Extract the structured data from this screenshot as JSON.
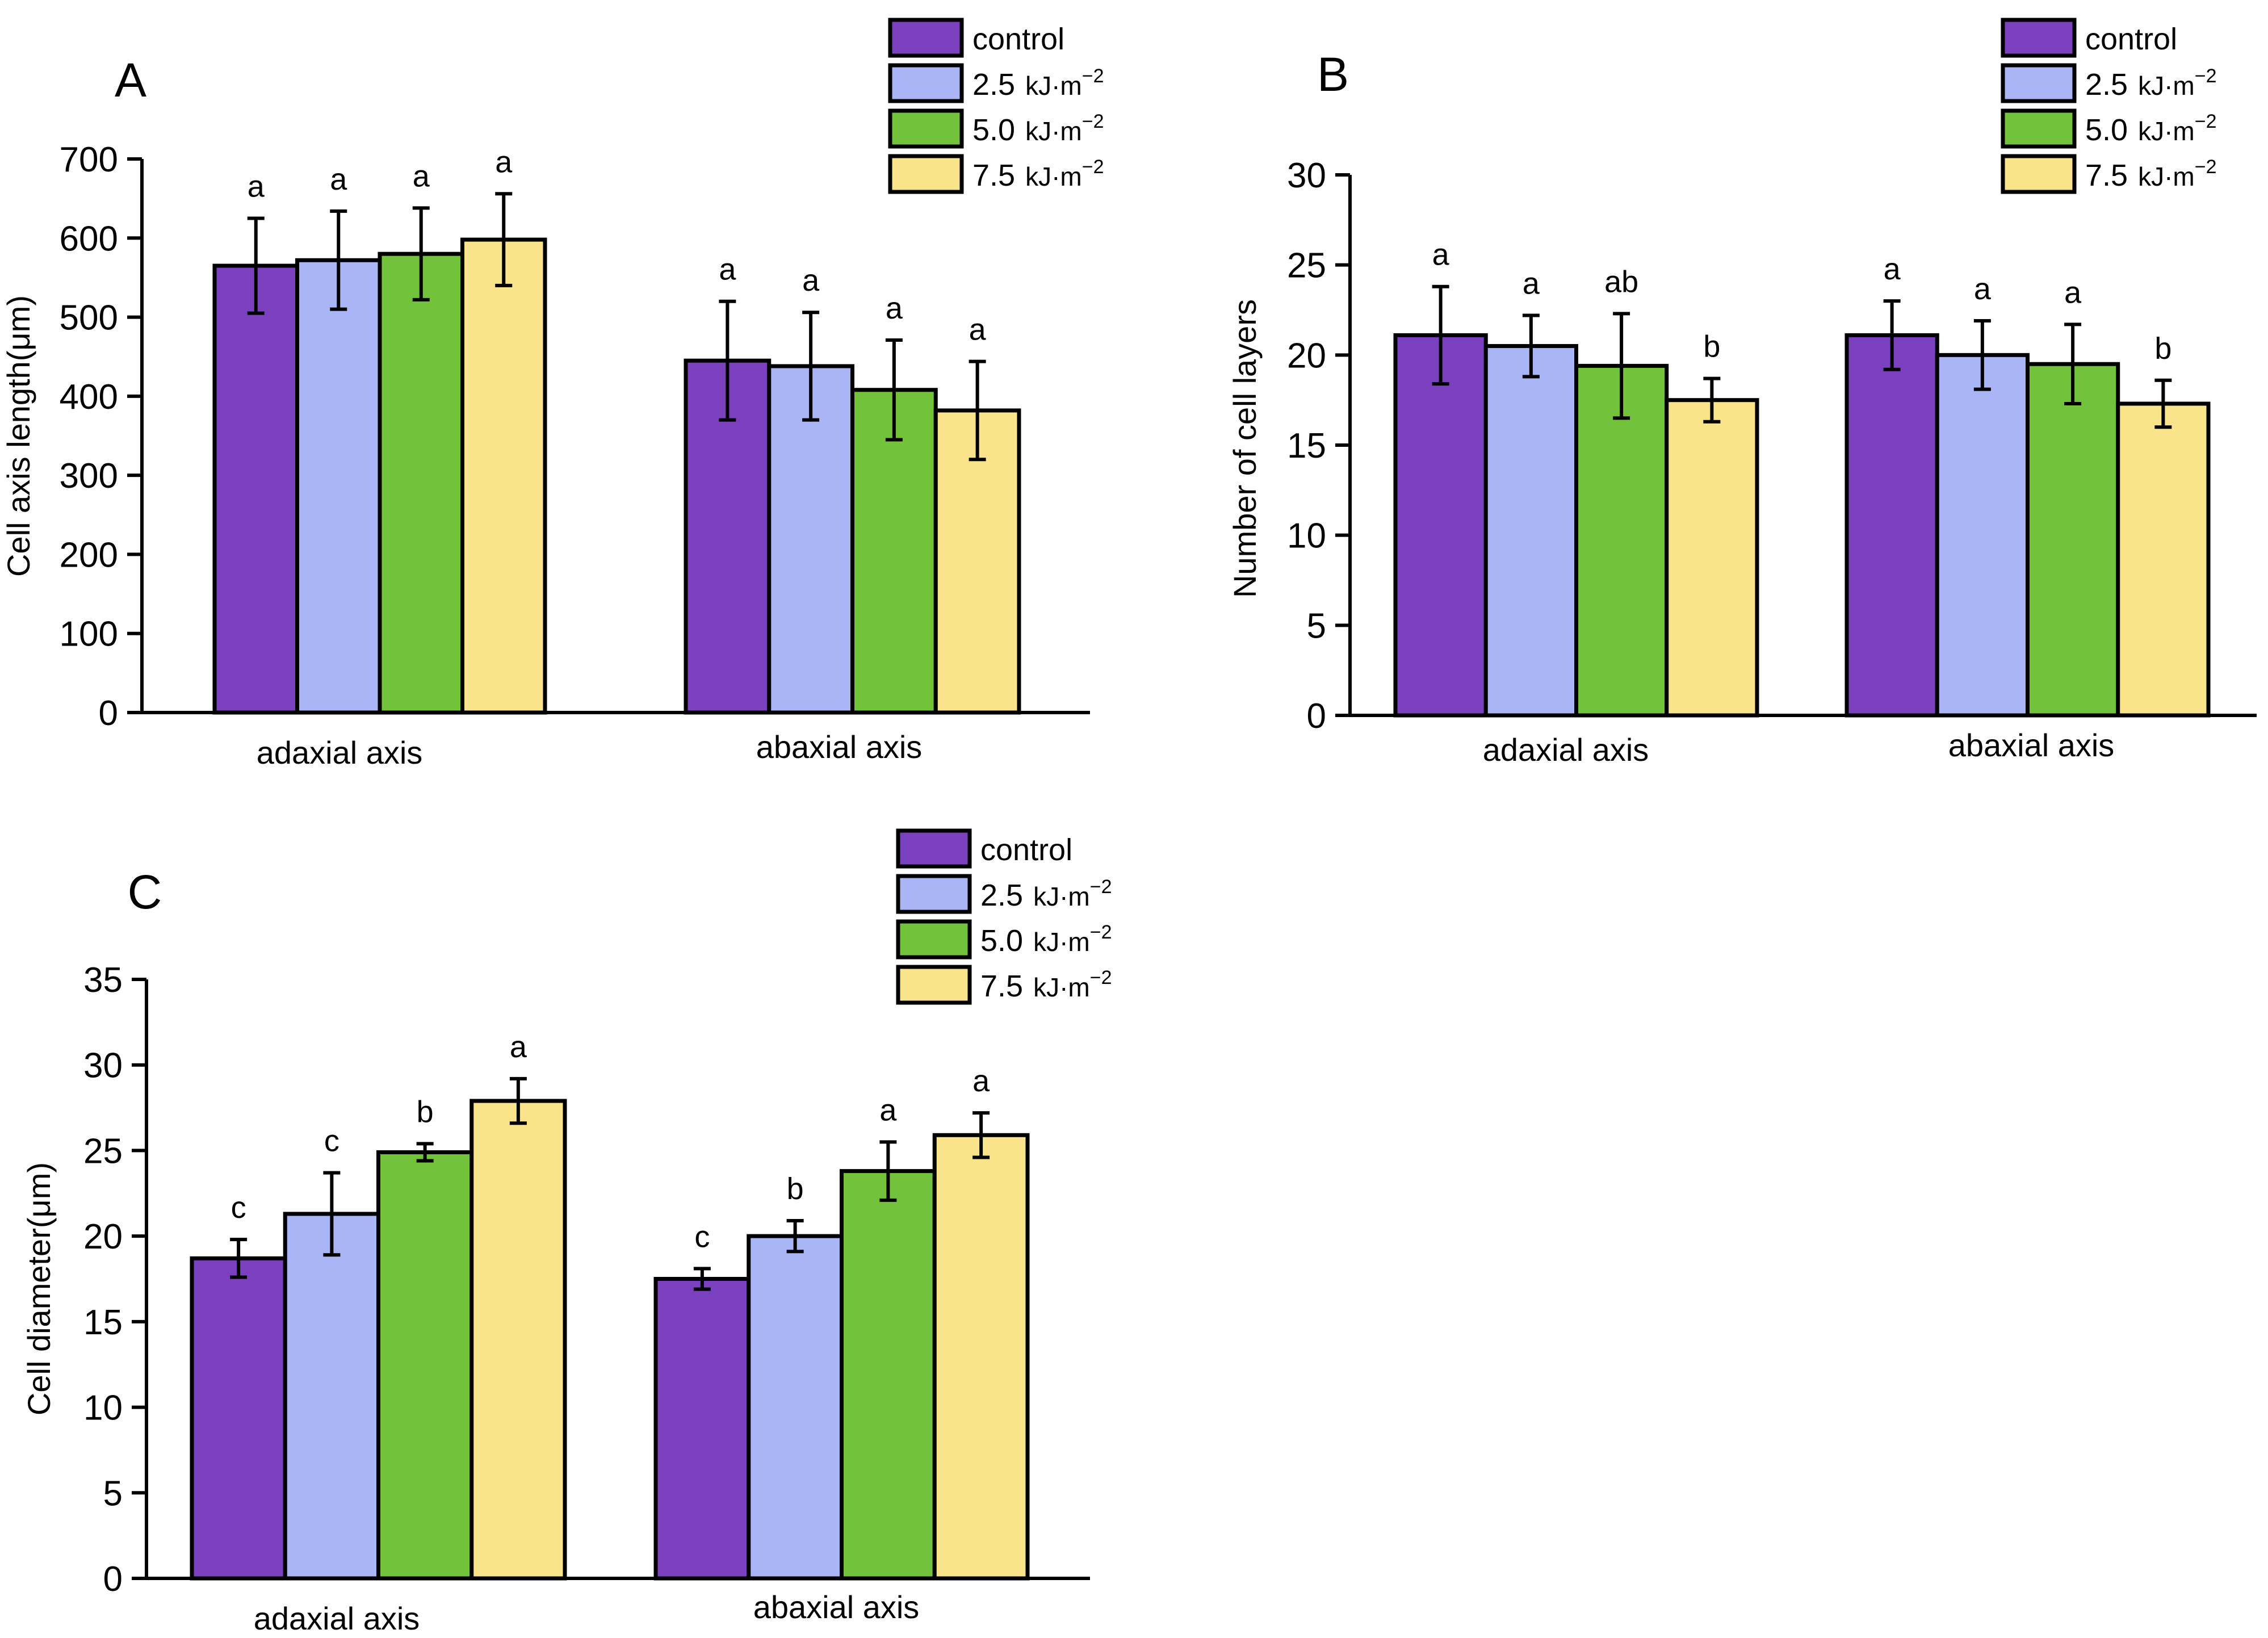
{
  "colors": {
    "control": "#7b40bd",
    "uv_2_5": "#a9b5f5",
    "uv_5_0": "#73c23b",
    "uv_7_5": "#f9e48c",
    "axis": "#000000"
  },
  "chart_data": [
    {
      "panel": "A",
      "type": "bar",
      "title": "",
      "xlabel": "",
      "ylabel": "Cell axis length(μm)",
      "ylim": [
        0,
        700
      ],
      "yticks": [
        0,
        100,
        200,
        300,
        400,
        500,
        600,
        700
      ],
      "categories": [
        "adaxial axis",
        "abaxial axis"
      ],
      "legend_position": "top-right",
      "series": [
        {
          "name": "control",
          "unit": "kJ·m",
          "exp": "",
          "values": [
            565,
            445
          ],
          "errors": [
            60,
            75
          ],
          "letters": [
            "a",
            "a"
          ]
        },
        {
          "name": "2.5",
          "unit": "kJ·m",
          "exp": "−2",
          "values": [
            572,
            438
          ],
          "errors": [
            62,
            68
          ],
          "letters": [
            "a",
            "a"
          ]
        },
        {
          "name": "5.0",
          "unit": "kJ·m",
          "exp": "−2",
          "values": [
            580,
            408
          ],
          "errors": [
            58,
            63
          ],
          "letters": [
            "a",
            "a"
          ]
        },
        {
          "name": "7.5",
          "unit": "kJ·m",
          "exp": "−2",
          "values": [
            598,
            382
          ],
          "errors": [
            58,
            62
          ],
          "letters": [
            "a",
            "a"
          ]
        }
      ]
    },
    {
      "panel": "B",
      "type": "bar",
      "title": "",
      "xlabel": "",
      "ylabel": "Number of cell layers",
      "ylim": [
        0,
        30
      ],
      "yticks": [
        0,
        5,
        10,
        15,
        20,
        25,
        30
      ],
      "categories": [
        "adaxial axis",
        "abaxial axis"
      ],
      "legend_position": "top-right",
      "series": [
        {
          "name": "control",
          "unit": "kJ·m",
          "exp": "",
          "values": [
            21.1,
            21.1
          ],
          "errors": [
            2.7,
            1.9
          ],
          "letters": [
            "a",
            "a"
          ]
        },
        {
          "name": "2.5",
          "unit": "kJ·m",
          "exp": "−2",
          "values": [
            20.5,
            20.0
          ],
          "errors": [
            1.7,
            1.9
          ],
          "letters": [
            "a",
            "a"
          ]
        },
        {
          "name": "5.0",
          "unit": "kJ·m",
          "exp": "−2",
          "values": [
            19.4,
            19.5
          ],
          "errors": [
            2.9,
            2.2
          ],
          "letters": [
            "ab",
            "a"
          ]
        },
        {
          "name": "7.5",
          "unit": "kJ·m",
          "exp": "−2",
          "values": [
            17.5,
            17.3
          ],
          "errors": [
            1.2,
            1.3
          ],
          "letters": [
            "b",
            "b"
          ]
        }
      ]
    },
    {
      "panel": "C",
      "type": "bar",
      "title": "",
      "xlabel": "",
      "ylabel": "Cell diameter(μm)",
      "ylim": [
        0,
        35
      ],
      "yticks": [
        0,
        5,
        10,
        15,
        20,
        25,
        30,
        35
      ],
      "categories": [
        "adaxial axis",
        "abaxial axis"
      ],
      "legend_position": "top-right",
      "series": [
        {
          "name": "control",
          "unit": "kJ·m",
          "exp": "",
          "values": [
            18.7,
            17.5
          ],
          "errors": [
            1.1,
            0.6
          ],
          "letters": [
            "c",
            "c"
          ]
        },
        {
          "name": "2.5",
          "unit": "kJ·m",
          "exp": "−2",
          "values": [
            21.3,
            20.0
          ],
          "errors": [
            2.4,
            0.9
          ],
          "letters": [
            "c",
            "b"
          ]
        },
        {
          "name": "5.0",
          "unit": "kJ·m",
          "exp": "−2",
          "values": [
            24.9,
            23.8
          ],
          "errors": [
            0.5,
            1.7
          ],
          "letters": [
            "b",
            "a"
          ]
        },
        {
          "name": "7.5",
          "unit": "kJ·m",
          "exp": "−2",
          "values": [
            27.9,
            25.9
          ],
          "errors": [
            1.3,
            1.3
          ],
          "letters": [
            "a",
            "a"
          ]
        }
      ]
    }
  ]
}
